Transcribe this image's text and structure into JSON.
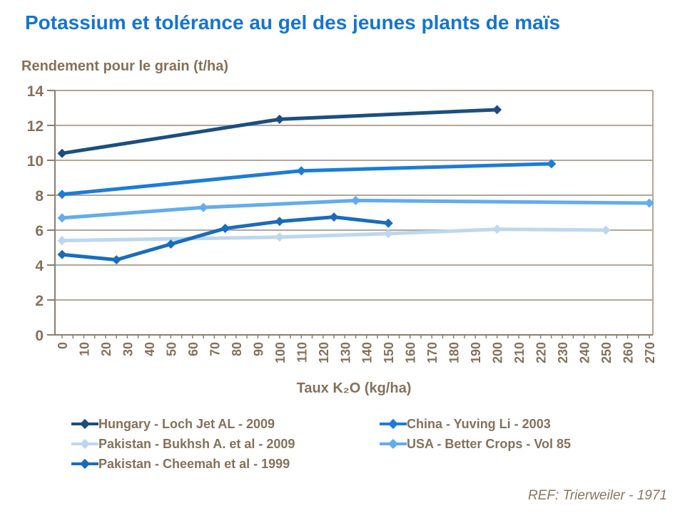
{
  "title": "Potassium et tolérance au gel des jeunes plants de maïs",
  "y_axis_title": "Rendement pour le grain (t/ha)",
  "x_axis_title": "Taux K₂O (kg/ha)",
  "footer": "REF: Trierweiler - 1971",
  "colors": {
    "title_text": "#1574D4",
    "axis_text": "#84715A",
    "axis_line": "#8A7F6F",
    "gridline": "#B2A79A",
    "footer_text": "#8A7662"
  },
  "chart_data": {
    "type": "line",
    "title": "Potassium et tolérance au gel des jeunes plants de maïs",
    "xlabel": "Taux K₂O (kg/ha)",
    "ylabel": "Rendement pour le grain (t/ha)",
    "xlim": [
      0,
      270
    ],
    "ylim": [
      0,
      14
    ],
    "x_ticks": [
      0,
      10,
      20,
      30,
      40,
      50,
      60,
      70,
      80,
      90,
      100,
      110,
      120,
      130,
      140,
      150,
      160,
      170,
      180,
      190,
      200,
      210,
      220,
      230,
      240,
      250,
      260,
      270
    ],
    "y_ticks": [
      0,
      2,
      4,
      6,
      8,
      10,
      12,
      14
    ],
    "grid": "horizontal",
    "legend_position": "bottom",
    "marker": "diamond",
    "series": [
      {
        "name": "Hungary - Loch Jet AL - 2009",
        "color": "#1C4E80",
        "x": [
          0,
          100,
          200
        ],
        "y": [
          10.4,
          12.35,
          12.9
        ]
      },
      {
        "name": "China - Yuving Li - 2003",
        "color": "#1B7CD9",
        "x": [
          0,
          110,
          225
        ],
        "y": [
          8.05,
          9.4,
          9.8
        ]
      },
      {
        "name": "Pakistan - Bukhsh A. et al - 2009",
        "color": "#BDD7EE",
        "x": [
          0,
          100,
          150,
          200,
          250
        ],
        "y": [
          5.4,
          5.6,
          5.8,
          6.05,
          6.0
        ]
      },
      {
        "name": "USA - Better Crops - Vol 85",
        "color": "#63ACEE",
        "x": [
          0,
          65,
          135,
          270
        ],
        "y": [
          6.7,
          7.3,
          7.7,
          7.55
        ]
      },
      {
        "name": "Pakistan - Cheemah et al - 1999",
        "color": "#1A6CBC",
        "x": [
          0,
          25,
          50,
          75,
          100,
          125,
          150
        ],
        "y": [
          4.6,
          4.3,
          5.2,
          6.1,
          6.5,
          6.75,
          6.4
        ]
      }
    ]
  }
}
